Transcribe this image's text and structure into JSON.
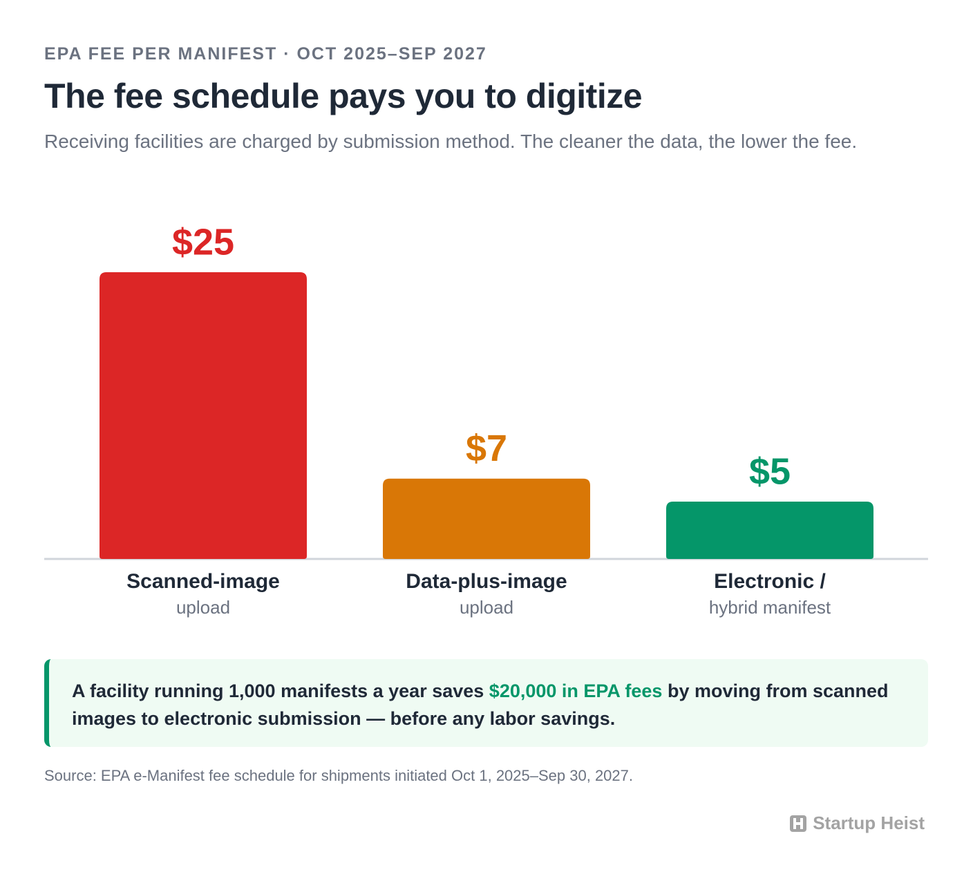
{
  "chart_data": {
    "type": "bar",
    "eyebrow": "EPA FEE PER MANIFEST · OCT 2025–SEP 2027",
    "title": "The fee schedule pays you to digitize",
    "subtitle": "Receiving facilities are charged by submission method. The cleaner the data, the lower the fee.",
    "categories": [
      "Scanned-image",
      "Data-plus-image",
      "Electronic /"
    ],
    "category_sublabels": [
      "upload",
      "upload",
      "hybrid manifest"
    ],
    "values": [
      25,
      7,
      5
    ],
    "value_labels": [
      "$25",
      "$7",
      "$5"
    ],
    "colors": [
      "#dc2626",
      "#d97706",
      "#059669"
    ]
  },
  "callout": {
    "text_before": "A facility running 1,000 manifests a year saves ",
    "highlight": "$20,000 in EPA fees",
    "text_after": " by moving from scanned images to electronic submission — before any labor savings."
  },
  "source": "Source: EPA e-Manifest fee schedule for shipments initiated Oct 1, 2025–Sep 30, 2027.",
  "brand": "Startup Heist"
}
